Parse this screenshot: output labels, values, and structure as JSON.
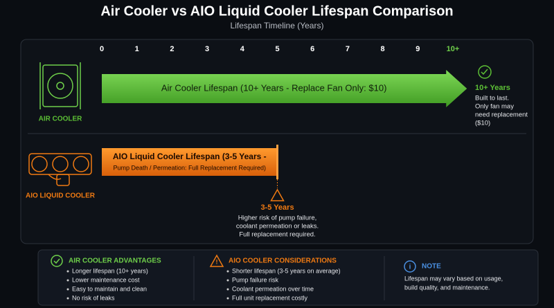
{
  "title": "Air Cooler vs AIO Liquid Cooler Lifespan Comparison",
  "subtitle": "Lifespan Timeline (Years)",
  "timeline": {
    "ticks": [
      0,
      1,
      2,
      3,
      4,
      5,
      6,
      7,
      8,
      9,
      {
        "value": 10,
        "label": "10+"
      }
    ],
    "bars": [
      {
        "label": "AIR COOLER",
        "text": [
          "Air Cooler Lifespan (10+ Years - Replace Fan Only: $10)"
        ],
        "start": 0,
        "end": 10.4,
        "color": "#5cbf35",
        "note_title": "10+ Years",
        "note_lines": [
          "Built to last.",
          "Only fan may",
          "need replacement",
          "($10)"
        ]
      },
      {
        "label": "AIO LIQUID COOLER",
        "text": [
          "AIO Liquid Cooler Lifespan (3-5 Years -",
          "Pump Death / Permeation: Full Replacement Required)"
        ],
        "start": 0,
        "end": 5,
        "color": "#f07a12",
        "note_title": "3-5 Years",
        "note_lines": [
          "Higher risk of pump failure,",
          "coolant permeation or leaks.",
          "Full replacement required."
        ]
      }
    ]
  },
  "panels": [
    {
      "title": "AIR COOLER ADVANTAGES",
      "items": [
        "Longer lifespan (10+ years)",
        "Lower maintenance cost",
        "Easy to maintain and clean",
        "No risk of leaks"
      ]
    },
    {
      "title": "AIO COOLER CONSIDERATIONS",
      "items": [
        "Shorter lifespan (3-5 years on average)",
        "Pump failure risk",
        "Coolant permeation over time",
        "Full unit replacement costly"
      ]
    },
    {
      "title": "NOTE",
      "items": [
        "Lifespan may vary based on usage,",
        "build quality, and maintenance."
      ]
    }
  ]
}
